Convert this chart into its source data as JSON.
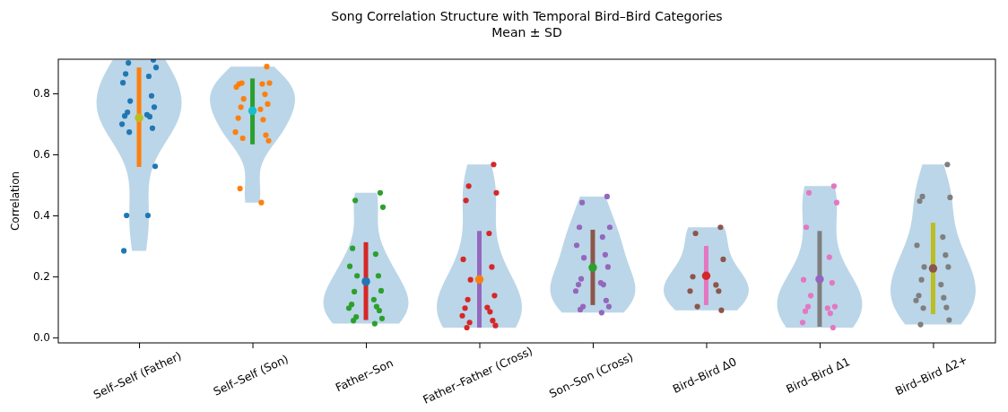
{
  "chart_data": {
    "type": "scatter",
    "title": "Song Correlation Structure with Temporal Bird–Bird Categories",
    "subtitle": "Mean ± SD",
    "ylabel": "Correlation",
    "categories": [
      "Self–Self (Father)",
      "Self–Self (Son)",
      "Father–Son",
      "Father–Father (Cross)",
      "Son–Son (Cross)",
      "Bird–Bird Δ0",
      "Bird–Bird Δ1",
      "Bird–Bird Δ2+"
    ],
    "ylim": [
      -0.018,
      0.912
    ],
    "yticks": [
      {
        "value": 0,
        "label": "0.0"
      },
      {
        "value": 0.2,
        "label": "0.2"
      },
      {
        "value": 0.4,
        "label": "0.4"
      },
      {
        "value": 0.6,
        "label": "0.6"
      },
      {
        "value": 0.8,
        "label": "0.8"
      }
    ],
    "grid": false,
    "marker": "circle",
    "series": [
      {
        "type": "scatter",
        "color": "#1f77b4",
        "x": [
          "Self–Self (Father)",
          "Self–Self (Father)",
          "Self–Self (Father)",
          "Self–Self (Father)",
          "Self–Self (Father)",
          "Self–Self (Father)",
          "Self–Self (Father)",
          "Self–Self (Father)",
          "Self–Self (Father)",
          "Self–Self (Father)",
          "Self–Self (Father)",
          "Self–Self (Father)",
          "Self–Self (Father)",
          "Self–Self (Father)",
          "Self–Self (Father)",
          "Self–Self (Father)",
          "Self–Self (Father)",
          "Self–Self (Father)",
          "Self–Self (Father)",
          "Self–Self (Father)"
        ],
        "values": [
          0.91,
          0.9,
          0.885,
          0.864,
          0.856,
          0.835,
          0.792,
          0.775,
          0.755,
          0.738,
          0.73,
          0.726,
          0.724,
          0.699,
          0.686,
          0.673,
          0.561,
          0.4,
          0.4,
          0.284
        ]
      },
      {
        "type": "scatter",
        "color": "#ff7f0e",
        "x": [
          "Self–Self (Son)",
          "Self–Self (Son)",
          "Self–Self (Son)",
          "Self–Self (Son)",
          "Self–Self (Son)",
          "Self–Self (Son)",
          "Self–Self (Son)",
          "Self–Self (Son)",
          "Self–Self (Son)",
          "Self–Self (Son)",
          "Self–Self (Son)",
          "Self–Self (Son)",
          "Self–Self (Son)",
          "Self–Self (Son)",
          "Self–Self (Son)",
          "Self–Self (Son)",
          "Self–Self (Son)",
          "Self–Self (Son)",
          "Self–Self (Son)"
        ],
        "values": [
          0.888,
          0.834,
          0.834,
          0.831,
          0.831,
          0.821,
          0.797,
          0.782,
          0.765,
          0.755,
          0.748,
          0.719,
          0.714,
          0.673,
          0.663,
          0.653,
          0.645,
          0.488,
          0.442
        ]
      },
      {
        "type": "scatter",
        "color": "#2ca02c",
        "x": [
          "Father–Son",
          "Father–Son",
          "Father–Son",
          "Father–Son",
          "Father–Son",
          "Father–Son",
          "Father–Son",
          "Father–Son",
          "Father–Son",
          "Father–Son",
          "Father–Son",
          "Father–Son",
          "Father–Son",
          "Father–Son",
          "Father–Son",
          "Father–Son",
          "Father–Son",
          "Father–Son",
          "Father–Son"
        ],
        "values": [
          0.474,
          0.449,
          0.427,
          0.292,
          0.273,
          0.233,
          0.202,
          0.202,
          0.153,
          0.15,
          0.124,
          0.108,
          0.101,
          0.096,
          0.088,
          0.067,
          0.062,
          0.055,
          0.045
        ]
      },
      {
        "type": "scatter",
        "color": "#d62728",
        "x": [
          "Father–Father (Cross)",
          "Father–Father (Cross)",
          "Father–Father (Cross)",
          "Father–Father (Cross)",
          "Father–Father (Cross)",
          "Father–Father (Cross)",
          "Father–Father (Cross)",
          "Father–Father (Cross)",
          "Father–Father (Cross)",
          "Father–Father (Cross)",
          "Father–Father (Cross)",
          "Father–Father (Cross)",
          "Father–Father (Cross)",
          "Father–Father (Cross)",
          "Father–Father (Cross)",
          "Father–Father (Cross)",
          "Father–Father (Cross)",
          "Father–Father (Cross)"
        ],
        "values": [
          0.567,
          0.496,
          0.474,
          0.449,
          0.341,
          0.256,
          0.231,
          0.189,
          0.137,
          0.124,
          0.098,
          0.096,
          0.084,
          0.071,
          0.055,
          0.049,
          0.039,
          0.032
        ]
      },
      {
        "type": "scatter",
        "color": "#9467bd",
        "x": [
          "Son–Son (Cross)",
          "Son–Son (Cross)",
          "Son–Son (Cross)",
          "Son–Son (Cross)",
          "Son–Son (Cross)",
          "Son–Son (Cross)",
          "Son–Son (Cross)",
          "Son–Son (Cross)",
          "Son–Son (Cross)",
          "Son–Son (Cross)",
          "Son–Son (Cross)",
          "Son–Son (Cross)",
          "Son–Son (Cross)",
          "Son–Son (Cross)",
          "Son–Son (Cross)",
          "Son–Son (Cross)",
          "Son–Son (Cross)",
          "Son–Son (Cross)",
          "Son–Son (Cross)"
        ],
        "values": [
          0.462,
          0.442,
          0.361,
          0.361,
          0.329,
          0.302,
          0.271,
          0.261,
          0.231,
          0.192,
          0.179,
          0.173,
          0.173,
          0.152,
          0.121,
          0.101,
          0.101,
          0.091,
          0.081
        ]
      },
      {
        "type": "scatter",
        "color": "#8c564b",
        "x": [
          "Bird–Bird Δ0",
          "Bird–Bird Δ0",
          "Bird–Bird Δ0",
          "Bird–Bird Δ0",
          "Bird–Bird Δ0",
          "Bird–Bird Δ0",
          "Bird–Bird Δ0",
          "Bird–Bird Δ0",
          "Bird–Bird Δ0"
        ],
        "values": [
          0.361,
          0.341,
          0.256,
          0.199,
          0.172,
          0.152,
          0.152,
          0.101,
          0.089
        ]
      },
      {
        "type": "scatter",
        "color": "#e377c2",
        "x": [
          "Bird–Bird Δ1",
          "Bird–Bird Δ1",
          "Bird–Bird Δ1",
          "Bird–Bird Δ1",
          "Bird–Bird Δ1",
          "Bird–Bird Δ1",
          "Bird–Bird Δ1",
          "Bird–Bird Δ1",
          "Bird–Bird Δ1",
          "Bird–Bird Δ1",
          "Bird–Bird Δ1",
          "Bird–Bird Δ1",
          "Bird–Bird Δ1",
          "Bird–Bird Δ1",
          "Bird–Bird Δ1"
        ],
        "values": [
          0.496,
          0.474,
          0.442,
          0.361,
          0.263,
          0.189,
          0.179,
          0.137,
          0.101,
          0.101,
          0.096,
          0.086,
          0.079,
          0.049,
          0.032
        ]
      },
      {
        "type": "scatter",
        "color": "#7f7f7f",
        "x": [
          "Bird–Bird Δ2+",
          "Bird–Bird Δ2+",
          "Bird–Bird Δ2+",
          "Bird–Bird Δ2+",
          "Bird–Bird Δ2+",
          "Bird–Bird Δ2+",
          "Bird–Bird Δ2+",
          "Bird–Bird Δ2+",
          "Bird–Bird Δ2+",
          "Bird–Bird Δ2+",
          "Bird–Bird Δ2+",
          "Bird–Bird Δ2+",
          "Bird–Bird Δ2+",
          "Bird–Bird Δ2+",
          "Bird–Bird Δ2+",
          "Bird–Bird Δ2+",
          "Bird–Bird Δ2+",
          "Bird–Bird Δ2+"
        ],
        "values": [
          0.567,
          0.462,
          0.459,
          0.447,
          0.329,
          0.302,
          0.27,
          0.231,
          0.231,
          0.189,
          0.173,
          0.137,
          0.13,
          0.121,
          0.098,
          0.096,
          0.057,
          0.042
        ]
      },
      {
        "type": "bar",
        "base": [
          0.559,
          0.633,
          0.057,
          0.032,
          0.106,
          0.106,
          0.035,
          0.076
        ],
        "values": [
          0.326,
          0.216,
          0.255,
          0.317,
          0.247,
          0.194,
          0.314,
          0.3
        ],
        "colors": [
          "#ff7f0e",
          "#2ca02c",
          "#d62728",
          "#9467bd",
          "#8c564b",
          "#e377c2",
          "#7f7f7f",
          "#bcbd22"
        ]
      },
      {
        "values": [
          0.72,
          0.743,
          0.183,
          0.19,
          0.229,
          0.202,
          0.191,
          0.226
        ],
        "colors": [
          "#bcbd22",
          "#17becf",
          "#1f77b4",
          "#ff7f0e",
          "#2ca02c",
          "#d62728",
          "#9467bd",
          "#8c564b"
        ]
      }
    ]
  }
}
